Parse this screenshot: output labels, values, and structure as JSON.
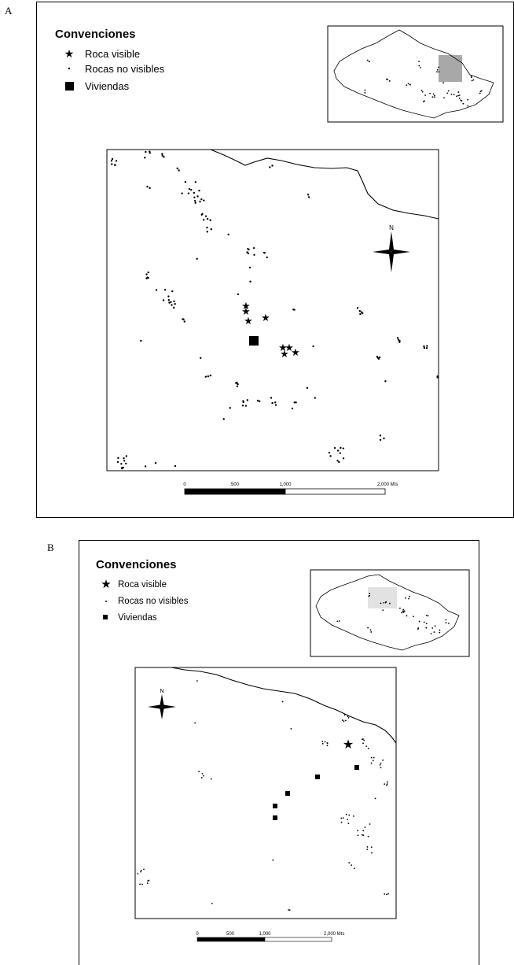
{
  "panels": [
    {
      "letter": "A",
      "legend": {
        "title": "Convenciones",
        "items": [
          {
            "symbol": "star",
            "label": "Roca visible"
          },
          {
            "symbol": "dot",
            "label": "Rocas no visibles"
          },
          {
            "symbol": "square",
            "label": "Viviendas"
          }
        ]
      },
      "north_label": "N",
      "scale": {
        "ticks": [
          "0",
          "500",
          "1,000",
          "2,000 Mts"
        ]
      },
      "inset_highlight_color": "#a8a8a8"
    },
    {
      "letter": "B",
      "legend": {
        "title": "Convenciones",
        "items": [
          {
            "symbol": "star",
            "label": "Roca visible"
          },
          {
            "symbol": "dot",
            "label": "Rocas no visibles"
          },
          {
            "symbol": "square",
            "label": "Viviendas"
          }
        ]
      },
      "north_label": "N",
      "scale": {
        "ticks": [
          "0",
          "500",
          "1,000",
          "2,000 Mts"
        ]
      },
      "inset_highlight_color": "#e2e2e2"
    }
  ]
}
